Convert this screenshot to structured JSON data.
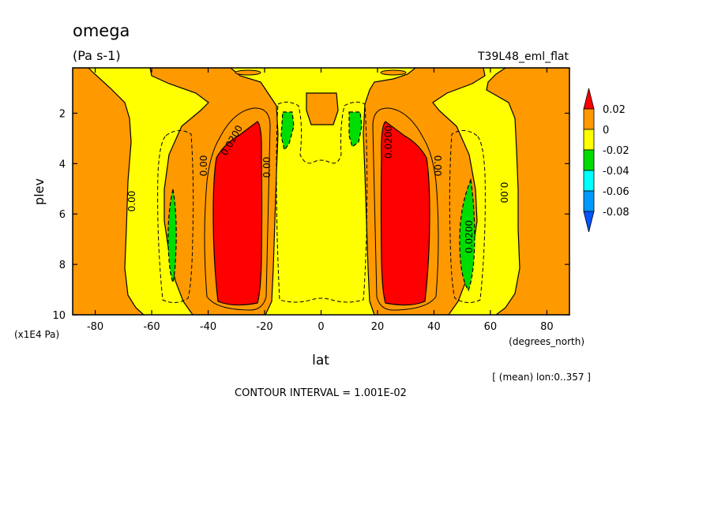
{
  "chart_data": {
    "type": "heatmap",
    "title": "omega",
    "units": "(Pa s-1)",
    "run_label": "T39L48_eml_flat",
    "xlabel": "lat",
    "x_units": "(degrees_north)",
    "ylabel": "plev",
    "y_units": "(x1E4 Pa)",
    "x_ticks": [
      -80,
      -60,
      -40,
      -20,
      0,
      20,
      40,
      60,
      80
    ],
    "y_ticks": [
      2,
      4,
      6,
      8,
      10
    ],
    "xlim": [
      -88,
      88
    ],
    "ylim": [
      10,
      0.2
    ],
    "averaging_note": "[ (mean) lon:0..357 ]",
    "contour_interval": "CONTOUR INTERVAL = 1.001E-02",
    "contour_labels": [
      "0.00",
      "0.0200",
      "0.00",
      "0.00",
      "0.0200",
      "0.00",
      "0.0200",
      "0.00"
    ],
    "colorbar": {
      "labels": [
        "0.02",
        "0",
        "-0.02",
        "-0.04",
        "-0.06",
        "-0.08"
      ],
      "colors": [
        "#ff0000",
        "#ff9900",
        "#ffff00",
        "#00dd00",
        "#00ffff",
        "#0099ff",
        "#0055ff"
      ]
    },
    "regions": [
      {
        "class": "orange",
        "range": "0 to 0.02",
        "extent": "subsidence regions near 50-90 lat and mid levels"
      },
      {
        "class": "yellow",
        "range": "-0.02 to 0",
        "extent": "background upward motion"
      },
      {
        "class": "red",
        "lat": -28,
        "plev": [
          2.3,
          9.5
        ],
        "range": "> 0.02"
      },
      {
        "class": "red",
        "lat": 28,
        "plev": [
          2.3,
          9.5
        ],
        "range": "> 0.02"
      },
      {
        "class": "green",
        "lat": -53,
        "plev": [
          5.0,
          8.7
        ],
        "range": "-0.04 to -0.02"
      },
      {
        "class": "green",
        "lat": 53,
        "plev": [
          4.6,
          9.0
        ],
        "range": "-0.04 to -0.02"
      },
      {
        "class": "green",
        "lat": -12,
        "plev": [
          1.9,
          3.4
        ],
        "range": "-0.04 to -0.02"
      },
      {
        "class": "green",
        "lat": 12,
        "plev": [
          1.9,
          3.2
        ],
        "range": "-0.04 to -0.02"
      }
    ]
  }
}
